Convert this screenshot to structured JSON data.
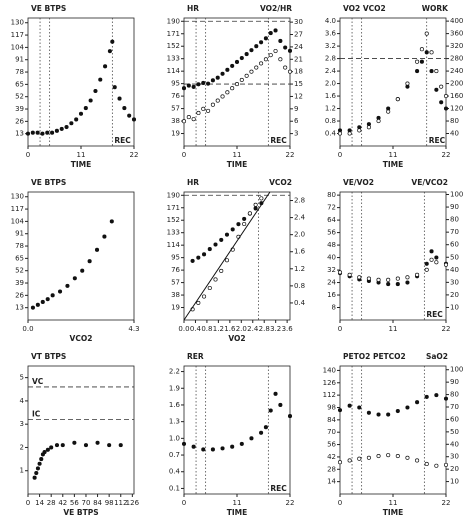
{
  "chart_data": [
    {
      "type": "scatter",
      "ylabel": "VE BTPS",
      "xlabel": "TIME",
      "xlim": [
        0,
        22
      ],
      "xticks": [
        0,
        11,
        22
      ],
      "ylim": [
        0,
        135
      ],
      "yticks": [
        13,
        26,
        39,
        52,
        65,
        78,
        91,
        104,
        117,
        130
      ],
      "vlines": [
        2.5,
        4.5,
        {
          "value": 17.5,
          "label": "REC"
        }
      ],
      "series": [
        {
          "marker": "filled",
          "x": [
            0,
            1,
            2,
            3,
            4,
            5,
            6,
            7,
            8,
            9,
            10,
            11,
            12,
            13,
            14,
            15,
            16,
            17,
            17.5,
            18,
            19,
            20,
            21,
            22
          ],
          "values": [
            13,
            14,
            14,
            13,
            14,
            14,
            16,
            18,
            20,
            24,
            28,
            34,
            40,
            48,
            58,
            70,
            84,
            100,
            110,
            62,
            50,
            40,
            32,
            28
          ]
        }
      ]
    },
    {
      "type": "scatter",
      "ylabel": "HR",
      "y2label": "VO2/HR",
      "xlabel": "TIME",
      "xlim": [
        0,
        22
      ],
      "xticks": [
        0,
        11,
        22
      ],
      "ylim": [
        0,
        195
      ],
      "yticks": [
        19,
        38,
        57,
        76,
        95,
        114,
        133,
        152,
        171,
        190
      ],
      "y2lim": [
        0,
        31
      ],
      "y2ticks": [
        3,
        6,
        9,
        12,
        15,
        18,
        21,
        24,
        27,
        30
      ],
      "vlines": [
        2.5,
        4.5,
        {
          "value": 17.5,
          "label": "REC"
        }
      ],
      "hlines": [
        {
          "value": 190
        },
        {
          "value": 15,
          "axis": "y2"
        }
      ],
      "series": [
        {
          "marker": "filled",
          "x": [
            0,
            1,
            2,
            3,
            4,
            5,
            6,
            7,
            8,
            9,
            10,
            11,
            12,
            13,
            14,
            15,
            16,
            17,
            18,
            19,
            20,
            21,
            22
          ],
          "values": [
            88,
            92,
            90,
            94,
            96,
            95,
            100,
            104,
            110,
            116,
            122,
            128,
            134,
            140,
            146,
            152,
            158,
            164,
            172,
            176,
            160,
            150,
            145
          ]
        },
        {
          "marker": "open",
          "axis": "y2",
          "x": [
            0,
            1,
            2,
            3,
            4,
            5,
            6,
            7,
            8,
            9,
            10,
            11,
            12,
            13,
            14,
            15,
            16,
            17,
            18,
            19,
            20,
            21,
            22
          ],
          "values": [
            6,
            7,
            6.5,
            8,
            9,
            8.5,
            10,
            11,
            12,
            13,
            14,
            15,
            16,
            17,
            18,
            19,
            20,
            21,
            22,
            23,
            21,
            19,
            18
          ]
        }
      ]
    },
    {
      "type": "scatter",
      "ylabel": "VO2 VCO2",
      "y2label": "WORK",
      "xlabel": "TIME",
      "xlim": [
        0,
        22
      ],
      "xticks": [
        0,
        11,
        22
      ],
      "ylim": [
        0,
        4.1
      ],
      "yticks": [
        0.4,
        0.8,
        1.2,
        1.6,
        {
          "value": 2,
          "label": "2.0"
        },
        2.4,
        2.8,
        3.2,
        3.6,
        {
          "value": 4,
          "label": "4.0"
        }
      ],
      "y2lim": [
        0,
        410
      ],
      "y2ticks": [
        40,
        80,
        120,
        160,
        200,
        240,
        280,
        320,
        360,
        400
      ],
      "vlines": [
        2.5,
        4.5,
        {
          "value": 18,
          "label": "REC"
        }
      ],
      "hlines": [
        {
          "value": 2.8
        }
      ],
      "series": [
        {
          "marker": "filled",
          "x": [
            0,
            2,
            4,
            6,
            8,
            10,
            12,
            14,
            16,
            17,
            18,
            19,
            20,
            21,
            22
          ],
          "values": [
            0.5,
            0.5,
            0.6,
            0.7,
            0.9,
            1.2,
            1.5,
            1.9,
            2.4,
            2.7,
            3.0,
            2.4,
            1.8,
            1.4,
            1.2
          ]
        },
        {
          "marker": "open",
          "x": [
            0,
            2,
            4,
            6,
            8,
            10,
            12,
            14,
            16,
            17,
            18,
            19,
            20,
            21,
            22
          ],
          "values": [
            0.4,
            0.4,
            0.5,
            0.6,
            0.8,
            1.1,
            1.5,
            2.0,
            2.7,
            3.1,
            3.6,
            3.0,
            2.4,
            1.9,
            1.6
          ]
        }
      ]
    },
    {
      "type": "scatter",
      "ylabel": "VE BTPS",
      "xlabel": "VCO2",
      "xlim": [
        0,
        4.3
      ],
      "xticks": [
        {
          "value": 0,
          "label": "0.0"
        },
        4.3
      ],
      "ylim": [
        0,
        135
      ],
      "yticks": [
        13,
        26,
        39,
        52,
        65,
        78,
        91,
        104,
        117,
        130
      ],
      "series": [
        {
          "marker": "filled",
          "x": [
            0.2,
            0.4,
            0.6,
            0.8,
            1.0,
            1.3,
            1.6,
            1.9,
            2.2,
            2.5,
            2.8,
            3.1,
            3.4
          ],
          "values": [
            13,
            16,
            19,
            22,
            26,
            30,
            36,
            44,
            52,
            62,
            74,
            88,
            104
          ]
        }
      ]
    },
    {
      "type": "scatter",
      "ylabel": "HR",
      "y2label": "VCO2",
      "xlabel": "VO2",
      "xlim": [
        0,
        3.7
      ],
      "xticks": [
        {
          "value": 0,
          "label": "0.0"
        },
        0.4,
        0.8,
        1.2,
        1.6,
        {
          "value": 2,
          "label": "2.0"
        },
        2.4,
        2.8,
        3.2,
        3.6
      ],
      "ylim": [
        0,
        195
      ],
      "yticks": [
        19,
        38,
        57,
        76,
        95,
        114,
        133,
        152,
        171,
        190
      ],
      "y2lim": [
        0,
        3.0
      ],
      "y2ticks": [
        0.4,
        0.8,
        1.2,
        1.6,
        {
          "value": 2,
          "label": "2.0"
        },
        2.4,
        2.8
      ],
      "vlines": [
        2.6
      ],
      "hlines": [
        {
          "value": 190
        }
      ],
      "series": [
        {
          "marker": "filled",
          "x": [
            0.3,
            0.5,
            0.7,
            0.9,
            1.1,
            1.3,
            1.5,
            1.7,
            1.9,
            2.1,
            2.3,
            2.5,
            2.7
          ],
          "values": [
            90,
            95,
            100,
            108,
            115,
            122,
            130,
            138,
            146,
            154,
            162,
            170,
            178
          ]
        },
        {
          "marker": "open",
          "axis": "y2",
          "x": [
            0.3,
            0.5,
            0.7,
            0.9,
            1.1,
            1.3,
            1.5,
            1.7,
            1.9,
            2.1,
            2.3,
            2.5,
            2.7
          ],
          "values": [
            0.25,
            0.4,
            0.55,
            0.75,
            0.95,
            1.15,
            1.4,
            1.65,
            1.95,
            2.25,
            2.5,
            2.7,
            2.85
          ]
        },
        {
          "style": "line",
          "axis": "y2",
          "x": [
            0,
            3.0
          ],
          "values": [
            0,
            3.0
          ]
        }
      ]
    },
    {
      "type": "scatter",
      "ylabel": "VE/VO2",
      "y2label": "VE/VCO2",
      "xlim": [
        0,
        22
      ],
      "xticks": [
        0,
        11,
        22
      ],
      "ylim": [
        0,
        82
      ],
      "yticks": [
        8,
        16,
        24,
        32,
        40,
        48,
        56,
        64,
        72,
        80
      ],
      "y2lim": [
        0,
        102
      ],
      "y2ticks": [
        10,
        20,
        30,
        40,
        50,
        60,
        70,
        80,
        90,
        100
      ],
      "vlines": [
        2.5,
        4.5,
        {
          "value": 17.5,
          "label": "REC"
        }
      ],
      "series": [
        {
          "marker": "filled",
          "x": [
            0,
            2,
            4,
            6,
            8,
            10,
            12,
            14,
            16,
            18,
            19,
            20,
            22
          ],
          "values": [
            30,
            28,
            26,
            25,
            24,
            23,
            23,
            24,
            28,
            36,
            44,
            40,
            36
          ]
        },
        {
          "marker": "open",
          "axis": "y2",
          "x": [
            0,
            2,
            4,
            6,
            8,
            10,
            12,
            14,
            16,
            18,
            19,
            20,
            22
          ],
          "values": [
            38,
            36,
            34,
            33,
            32,
            32,
            33,
            34,
            36,
            40,
            48,
            46,
            44
          ]
        }
      ]
    },
    {
      "type": "scatter",
      "ylabel": "VT BTPS",
      "xlabel": "VE BTPS",
      "xlim": [
        0,
        128
      ],
      "xticks": [
        0,
        14,
        28,
        42,
        56,
        70,
        84,
        98,
        112,
        126
      ],
      "ylim": [
        0,
        5.5
      ],
      "yticks": [
        1,
        2,
        3,
        4,
        5
      ],
      "hlines": [
        {
          "value": 4.6,
          "label": "VC"
        },
        {
          "value": 3.2,
          "label": "IC"
        }
      ],
      "series": [
        {
          "marker": "filled",
          "x": [
            8,
            10,
            12,
            14,
            16,
            18,
            20,
            24,
            28,
            35,
            42,
            56,
            70,
            84,
            98,
            112
          ],
          "values": [
            0.7,
            0.9,
            1.1,
            1.3,
            1.5,
            1.7,
            1.8,
            1.9,
            2.0,
            2.1,
            2.1,
            2.2,
            2.1,
            2.2,
            2.1,
            2.1
          ]
        }
      ]
    },
    {
      "type": "scatter",
      "ylabel": "RER",
      "xlabel": "TIME",
      "xlim": [
        0,
        22
      ],
      "xticks": [
        0,
        11,
        22
      ],
      "ylim": [
        0,
        2.3
      ],
      "yticks": [
        0.1,
        0.4,
        0.7,
        {
          "value": 1,
          "label": "1.0"
        },
        1.3,
        1.6,
        1.9,
        2.2
      ],
      "vlines": [
        2.5,
        4.5,
        {
          "value": 17.5,
          "label": "REC"
        }
      ],
      "series": [
        {
          "marker": "filled",
          "x": [
            0,
            2,
            4,
            6,
            8,
            10,
            12,
            14,
            16,
            17,
            18,
            19,
            20,
            22
          ],
          "values": [
            0.9,
            0.85,
            0.8,
            0.8,
            0.82,
            0.85,
            0.9,
            1.0,
            1.1,
            1.2,
            1.5,
            1.8,
            1.6,
            1.4
          ]
        }
      ]
    },
    {
      "type": "scatter",
      "ylabel": "PETO2 PETCO2",
      "y2label": "SaO2",
      "xlabel": "TIME",
      "xlim": [
        0,
        22
      ],
      "xticks": [
        0,
        11,
        22
      ],
      "ylim": [
        0,
        145
      ],
      "yticks": [
        14,
        28,
        42,
        56,
        70,
        84,
        98,
        112,
        126,
        140
      ],
      "y2lim": [
        0,
        103
      ],
      "y2ticks": [
        10,
        20,
        30,
        40,
        50,
        60,
        70,
        80,
        90,
        100
      ],
      "vlines": [
        2.5,
        4.5,
        17.5
      ],
      "series": [
        {
          "marker": "filled",
          "x": [
            0,
            2,
            4,
            6,
            8,
            10,
            12,
            14,
            16,
            18,
            20,
            22
          ],
          "values": [
            95,
            100,
            98,
            92,
            90,
            90,
            94,
            98,
            104,
            110,
            112,
            108
          ]
        },
        {
          "marker": "open",
          "x": [
            0,
            2,
            4,
            6,
            8,
            10,
            12,
            14,
            16,
            18,
            20,
            22
          ],
          "values": [
            36,
            38,
            40,
            41,
            43,
            44,
            43,
            41,
            38,
            34,
            32,
            33
          ]
        }
      ]
    }
  ]
}
